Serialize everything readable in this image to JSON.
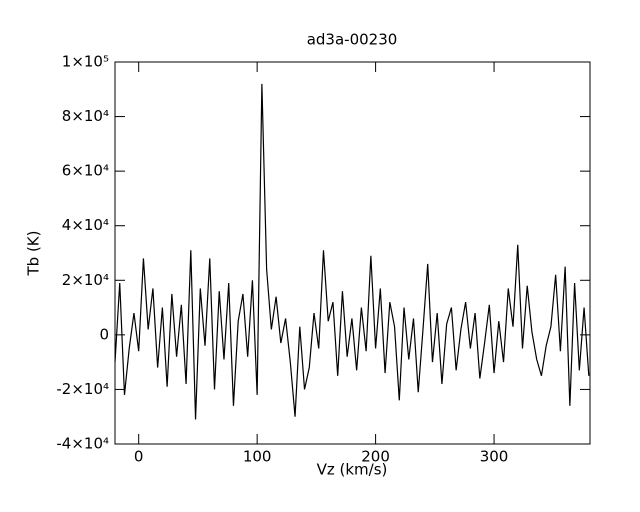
{
  "chart_data": {
    "type": "line",
    "title": "ad3a-00230",
    "x_label": "Vz (km/s)",
    "y_label": "Tb (K)",
    "x": [
      -20,
      -16,
      -12,
      -8,
      -4,
      0,
      4,
      8,
      12,
      16,
      20,
      24,
      28,
      32,
      36,
      40,
      44,
      48,
      52,
      56,
      60,
      64,
      68,
      72,
      76,
      80,
      84,
      88,
      92,
      96,
      100,
      104,
      108,
      112,
      116,
      120,
      124,
      128,
      132,
      136,
      140,
      144,
      148,
      152,
      156,
      160,
      164,
      168,
      172,
      176,
      180,
      184,
      188,
      192,
      196,
      200,
      204,
      208,
      212,
      216,
      220,
      224,
      228,
      232,
      236,
      240,
      244,
      248,
      252,
      256,
      260,
      264,
      268,
      272,
      276,
      280,
      284,
      288,
      292,
      296,
      300,
      304,
      308,
      312,
      316,
      320,
      324,
      328,
      332,
      336,
      340,
      344,
      348,
      352,
      356,
      360,
      364,
      368,
      372,
      376,
      380
    ],
    "series": [
      {
        "name": "Tb",
        "color": "#000000",
        "values": [
          -10000,
          19000,
          -22000,
          -5000,
          8000,
          -6000,
          28000,
          2000,
          17000,
          -12000,
          10000,
          -19000,
          15000,
          -8000,
          11000,
          -18000,
          31000,
          -31000,
          17000,
          -4000,
          28000,
          -20000,
          16000,
          -9000,
          19000,
          -26000,
          5000,
          15000,
          -8000,
          20000,
          -22000,
          92000,
          24000,
          2000,
          14000,
          -3000,
          6000,
          -10000,
          -30000,
          3000,
          -20000,
          -12000,
          8000,
          -5000,
          31000,
          5000,
          12000,
          -15000,
          16000,
          -8000,
          6000,
          -13000,
          10000,
          -6000,
          29000,
          -5000,
          17000,
          -14000,
          12000,
          3000,
          -24000,
          10000,
          -9000,
          6000,
          -21000,
          2000,
          26000,
          -10000,
          8000,
          -18000,
          4000,
          10000,
          -13000,
          2000,
          12000,
          -5000,
          8000,
          -16000,
          -3000,
          11000,
          -14000,
          5000,
          -10000,
          17000,
          3000,
          33000,
          -5000,
          18000,
          1000,
          -9000,
          -15000,
          -4000,
          3000,
          22000,
          -6000,
          25000,
          -26000,
          19000,
          -13000,
          10000,
          -15000
        ]
      }
    ],
    "xlim": [
      -20,
      381
    ],
    "xticks": [
      0,
      100,
      200,
      300
    ],
    "ylim": [
      -40000,
      100000
    ],
    "yticks": [
      {
        "value": -40000,
        "label": "-4×10⁴"
      },
      {
        "value": -20000,
        "label": "-2×10⁴"
      },
      0,
      {
        "value": 20000,
        "label": "2×10⁴"
      },
      {
        "value": 40000,
        "label": "4×10⁴"
      },
      {
        "value": 60000,
        "label": "6×10⁴"
      },
      {
        "value": 80000,
        "label": "8×10⁴"
      },
      {
        "value": 100000,
        "label": "1×10⁵"
      }
    ]
  }
}
